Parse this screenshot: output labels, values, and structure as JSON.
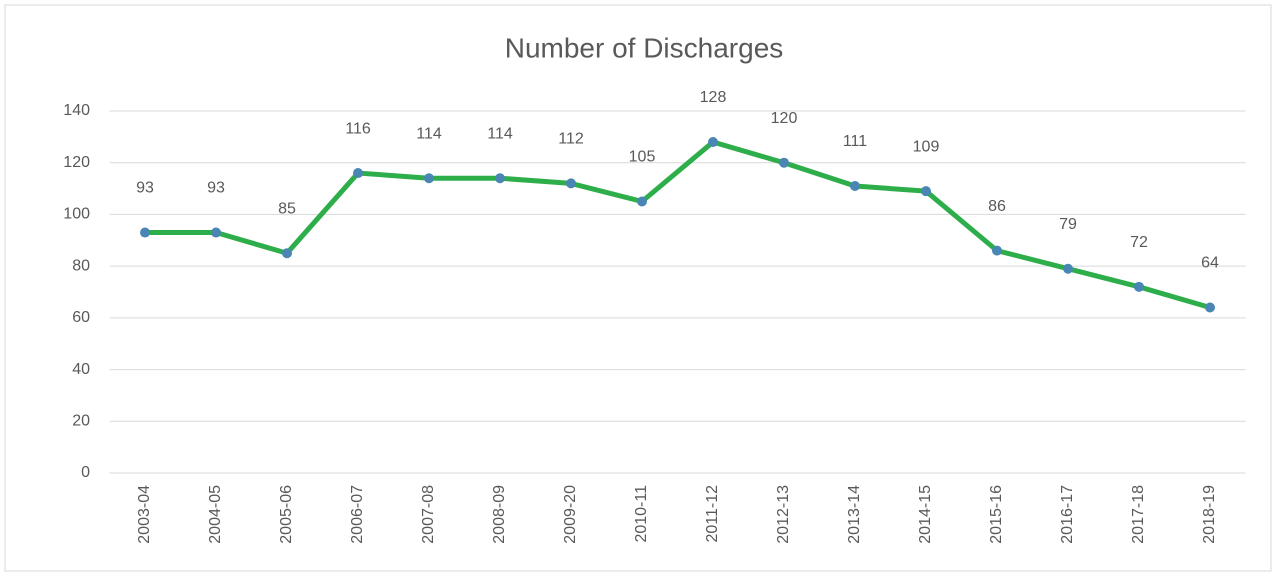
{
  "chart_data": {
    "type": "line",
    "title": "Number of Discharges",
    "categories": [
      "2003-04",
      "2004-05",
      "2005-06",
      "2006-07",
      "2007-08",
      "2008-09",
      "2009-20",
      "2010-11",
      "2011-12",
      "2012-13",
      "2013-14",
      "2014-15",
      "2015-16",
      "2016-17",
      "2017-18",
      "2018-19"
    ],
    "values": [
      93,
      93,
      85,
      116,
      114,
      114,
      112,
      105,
      128,
      120,
      111,
      109,
      86,
      79,
      72,
      64
    ],
    "color": "#2eae4a",
    "marker_color": "#4a86b4",
    "ylim": [
      0,
      140
    ],
    "yticks": [
      0,
      20,
      40,
      60,
      80,
      100,
      120,
      140
    ],
    "grid": true
  }
}
